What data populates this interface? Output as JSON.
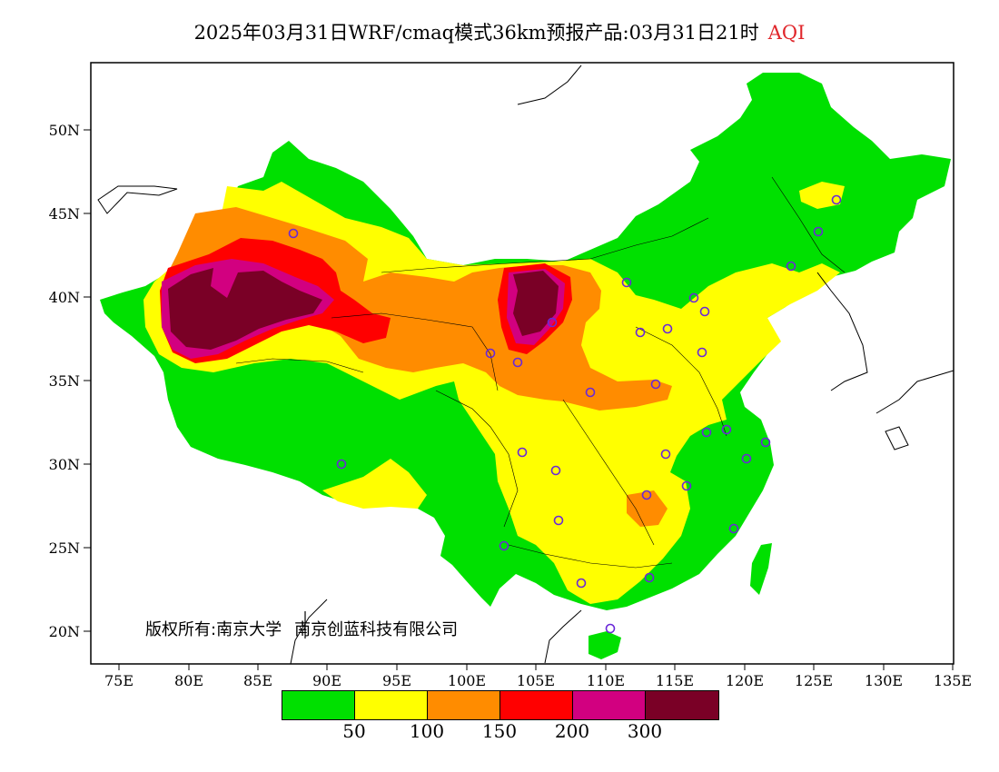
{
  "title": {
    "main": "2025年03月31日WRF/cmaq模式36km预报产品:03月31日21时",
    "variable": "AQI"
  },
  "axes": {
    "lat_labels": [
      "50N",
      "45N",
      "40N",
      "35N",
      "30N",
      "25N",
      "20N"
    ],
    "lon_labels": [
      "75E",
      "80E",
      "85E",
      "90E",
      "95E",
      "100E",
      "105E",
      "110E",
      "115E",
      "120E",
      "125E",
      "130E",
      "135E"
    ]
  },
  "copyright": {
    "prefix": "版权所有:",
    "org1": "南京大学",
    "org2": "南京创蓝科技有限公司"
  },
  "legend": {
    "colors": [
      "#00e000",
      "#ffff00",
      "#ff8c00",
      "#ff0000",
      "#d20080",
      "#7a0026"
    ],
    "labels": [
      "50",
      "100",
      "150",
      "200",
      "300"
    ]
  },
  "colors": {
    "good": "#00e000",
    "moderate": "#ffff00",
    "usg": "#ff8c00",
    "unhealthy": "#ff0000",
    "very_unhealthy": "#d20080",
    "hazardous": "#7a0026",
    "station_marker": "#6a28d8"
  }
}
